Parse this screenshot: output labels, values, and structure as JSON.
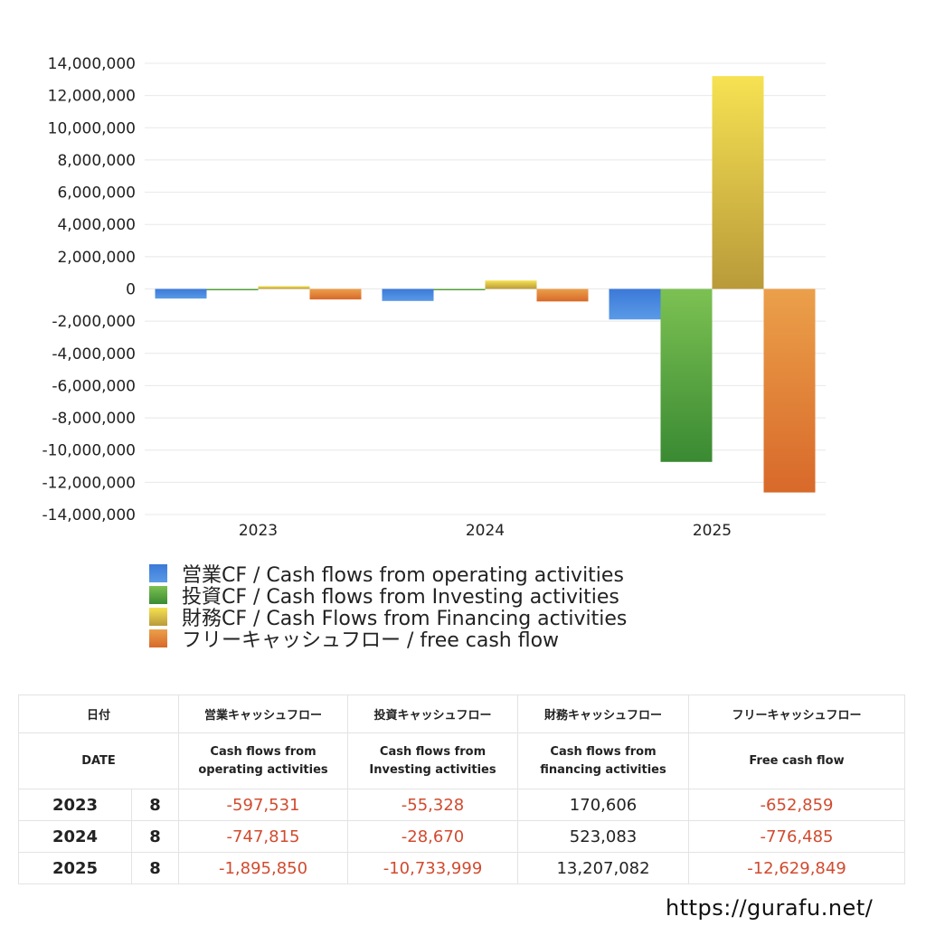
{
  "chart_data": {
    "type": "bar",
    "categories": [
      "2023",
      "2024",
      "2025"
    ],
    "series": [
      {
        "name": "営業CF / Cash flows from operating activities",
        "values": [
          -597531,
          -747815,
          -1895850
        ],
        "color": "#3f7fd6"
      },
      {
        "name": "投資CF / Cash flows from Investing activities",
        "values": [
          -55328,
          -28670,
          -10733999
        ],
        "color": "#4f9a3d"
      },
      {
        "name": "財務CF / Cash Flows from Financing activities",
        "values": [
          170606,
          523083,
          13207082
        ],
        "color": "#e6c84a"
      },
      {
        "name": "フリーキャッシュフロー / free cash flow",
        "values": [
          -652859,
          -776485,
          -12629849
        ],
        "color": "#e07a30"
      }
    ],
    "yticks": [
      "14,000,000",
      "12,000,000",
      "10,000,000",
      "8,000,000",
      "6,000,000",
      "4,000,000",
      "2,000,000",
      "0",
      "-2,000,000",
      "-4,000,000",
      "-6,000,000",
      "-8,000,000",
      "-10,000,000",
      "-12,000,000",
      "-14,000,000"
    ],
    "ylim": [
      -14000000,
      14000000
    ],
    "grid": true,
    "legend_position": "bottom"
  },
  "table": {
    "header_ja": {
      "date": "日付",
      "operating": "営業キャッシュフロー",
      "investing": "投資キャッシュフロー",
      "financing": "財務キャッシュフロー",
      "free": "フリーキャッシュフロー"
    },
    "header_en": {
      "date": "DATE",
      "operating": "Cash flows from\noperating activities",
      "investing": "Cash flows from\nInvesting activities",
      "financing": "Cash flows from\nfinancing activities",
      "free": "Free cash flow"
    },
    "rows": [
      {
        "year": "2023",
        "month": "8",
        "operating": "-597,531",
        "investing": "-55,328",
        "financing": "170,606",
        "free": "-652,859"
      },
      {
        "year": "2024",
        "month": "8",
        "operating": "-747,815",
        "investing": "-28,670",
        "financing": "523,083",
        "free": "-776,485"
      },
      {
        "year": "2025",
        "month": "8",
        "operating": "-1,895,850",
        "investing": "-10,733,999",
        "financing": "13,207,082",
        "free": "-12,629,849"
      }
    ]
  },
  "footer": {
    "url": "https://gurafu.net/"
  }
}
